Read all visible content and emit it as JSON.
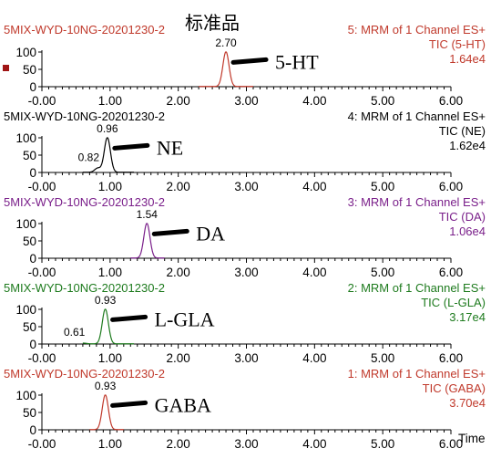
{
  "title": "标准品",
  "x_axis_label": "Time",
  "marker_color": "#a01515",
  "chart_data": [
    {
      "type": "line",
      "sample": "5MIX-WYD-10NG-20201230-2",
      "channel": "5: MRM of 1 Channel ES+",
      "tic": "TIC (5-HT)",
      "intensity": "1.64e4",
      "compound": "5-HT",
      "color": "#c0392b",
      "xlim": [
        0,
        6
      ],
      "ylim": [
        0,
        100
      ],
      "xticks": [
        "-0.00",
        "1.00",
        "2.00",
        "3.00",
        "4.00",
        "5.00",
        "6.00"
      ],
      "yticks": [
        "0",
        "50",
        "100"
      ],
      "peaks": [
        {
          "rt": 2.7,
          "label": "2.70",
          "height": 100
        }
      ],
      "trace_range": [
        2.3,
        3.1
      ]
    },
    {
      "type": "line",
      "sample": "5MIX-WYD-10NG-20201230-2",
      "channel": "4: MRM of 1 Channel ES+",
      "tic": "TIC (NE)",
      "intensity": "1.62e4",
      "compound": "NE",
      "color": "#000000",
      "xlim": [
        0,
        6
      ],
      "ylim": [
        0,
        100
      ],
      "xticks": [
        "-0.00",
        "1.00",
        "2.00",
        "3.00",
        "4.00",
        "5.00",
        "6.00"
      ],
      "yticks": [
        "0",
        "50",
        "100"
      ],
      "peaks": [
        {
          "rt": 0.82,
          "label": "0.82",
          "height": 12
        },
        {
          "rt": 0.96,
          "label": "0.96",
          "height": 100
        }
      ],
      "trace_range": [
        0.6,
        1.35
      ]
    },
    {
      "type": "line",
      "sample": "5MIX-WYD-10NG-20201230-2",
      "channel": "3: MRM of 1 Channel ES+",
      "tic": "TIC (DA)",
      "intensity": "1.06e4",
      "compound": "DA",
      "color": "#7a1f8a",
      "xlim": [
        0,
        6
      ],
      "ylim": [
        0,
        100
      ],
      "xticks": [
        "-0.00",
        "1.00",
        "2.00",
        "3.00",
        "4.00",
        "5.00",
        "6.00"
      ],
      "yticks": [
        "0",
        "50",
        "100"
      ],
      "peaks": [
        {
          "rt": 1.54,
          "label": "1.54",
          "height": 100
        }
      ],
      "trace_range": [
        1.3,
        1.8
      ]
    },
    {
      "type": "line",
      "sample": "5MIX-WYD-10NG-20201230-2",
      "channel": "2: MRM of 1 Channel ES+",
      "tic": "TIC (L-GLA)",
      "intensity": "3.17e4",
      "compound": "L-GLA",
      "color": "#1e7b1e",
      "xlim": [
        0,
        6
      ],
      "ylim": [
        0,
        100
      ],
      "xticks": [
        "-0.00",
        "1.00",
        "2.00",
        "3.00",
        "4.00",
        "5.00",
        "6.00"
      ],
      "yticks": [
        "0",
        "50",
        "100"
      ],
      "peaks": [
        {
          "rt": 0.61,
          "label": "0.61",
          "height": 2
        },
        {
          "rt": 0.93,
          "label": "0.93",
          "height": 100
        }
      ],
      "trace_range": [
        0.6,
        1.35
      ]
    },
    {
      "type": "line",
      "sample": "5MIX-WYD-10NG-20201230-2",
      "channel": "1: MRM of 1 Channel ES+",
      "tic": "TIC (GABA)",
      "intensity": "3.70e4",
      "compound": "GABA",
      "color": "#c0392b",
      "xlim": [
        0,
        6
      ],
      "ylim": [
        0,
        100
      ],
      "xticks": [
        "-0.00",
        "1.00",
        "2.00",
        "3.00",
        "4.00",
        "5.00",
        "6.00"
      ],
      "yticks": [
        "0",
        "50",
        "100"
      ],
      "peaks": [
        {
          "rt": 0.93,
          "label": "0.93",
          "height": 100
        }
      ],
      "trace_range": [
        0.7,
        1.2
      ]
    }
  ]
}
